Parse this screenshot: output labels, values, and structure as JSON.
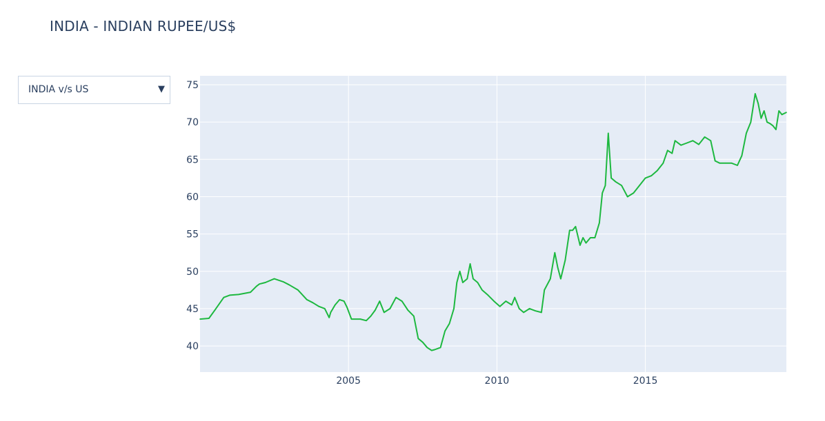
{
  "title": "INDIA - INDIAN RUPEE/US$",
  "dropdown": {
    "selected": "INDIA v/s US",
    "icon": "triangle-down-icon"
  },
  "colors": {
    "line": "#1db83f",
    "plot_bg": "#e5ecf6",
    "grid": "#ffffff",
    "text": "#2a3f5f"
  },
  "chart_data": {
    "type": "line",
    "title": "INDIA - INDIAN RUPEE/US$",
    "xlabel": "",
    "ylabel": "",
    "xlim": [
      2000.0,
      2019.75
    ],
    "ylim": [
      36.5,
      76.2
    ],
    "x_ticks": [
      2005,
      2010,
      2015
    ],
    "x_tick_labels": [
      "2005",
      "2010",
      "2015"
    ],
    "y_ticks": [
      40,
      45,
      50,
      55,
      60,
      65,
      70,
      75
    ],
    "y_tick_labels": [
      "40",
      "45",
      "50",
      "55",
      "60",
      "65",
      "70",
      "75"
    ],
    "grid": true,
    "series": [
      {
        "x": [
          2000.0,
          2000.3,
          2000.5,
          2000.8,
          2001.0,
          2001.3,
          2001.7,
          2001.9,
          2002.0,
          2002.2,
          2002.5,
          2002.8,
          2003.0,
          2003.3,
          2003.6,
          2003.8,
          2004.0,
          2004.2,
          2004.35,
          2004.4,
          2004.55,
          2004.7,
          2004.85,
          2004.95,
          2005.1,
          2005.4,
          2005.6,
          2005.75,
          2005.9,
          2006.05,
          2006.2,
          2006.4,
          2006.6,
          2006.8,
          2007.0,
          2007.2,
          2007.35,
          2007.5,
          2007.65,
          2007.8,
          2007.9,
          2008.1,
          2008.25,
          2008.4,
          2008.55,
          2008.65,
          2008.75,
          2008.85,
          2009.0,
          2009.1,
          2009.2,
          2009.35,
          2009.5,
          2009.7,
          2009.9,
          2010.1,
          2010.3,
          2010.5,
          2010.6,
          2010.75,
          2010.9,
          2011.1,
          2011.3,
          2011.5,
          2011.6,
          2011.8,
          2011.95,
          2012.05,
          2012.15,
          2012.3,
          2012.45,
          2012.55,
          2012.65,
          2012.8,
          2012.9,
          2013.0,
          2013.15,
          2013.3,
          2013.45,
          2013.55,
          2013.65,
          2013.75,
          2013.85,
          2014.0,
          2014.2,
          2014.4,
          2014.6,
          2014.8,
          2015.0,
          2015.2,
          2015.4,
          2015.6,
          2015.75,
          2015.9,
          2016.0,
          2016.2,
          2016.4,
          2016.6,
          2016.8,
          2017.0,
          2017.2,
          2017.35,
          2017.5,
          2017.7,
          2017.9,
          2018.1,
          2018.25,
          2018.4,
          2018.55,
          2018.7,
          2018.8,
          2018.9,
          2019.0,
          2019.1,
          2019.2,
          2019.3,
          2019.4,
          2019.5,
          2019.6,
          2019.75
        ],
        "values": [
          43.6,
          43.7,
          44.8,
          46.5,
          46.8,
          46.9,
          47.2,
          48.0,
          48.3,
          48.5,
          49.0,
          48.6,
          48.2,
          47.5,
          46.2,
          45.8,
          45.3,
          45.0,
          43.8,
          44.5,
          45.5,
          46.2,
          46.0,
          45.2,
          43.6,
          43.6,
          43.4,
          44.0,
          44.8,
          46.0,
          44.5,
          45.0,
          46.5,
          46.0,
          44.8,
          44.0,
          41.0,
          40.5,
          39.8,
          39.4,
          39.5,
          39.8,
          42.0,
          43.0,
          45.0,
          48.5,
          50.0,
          48.5,
          49.0,
          51.0,
          49.0,
          48.5,
          47.5,
          46.8,
          46.0,
          45.3,
          46.0,
          45.5,
          46.5,
          45.0,
          44.5,
          45.0,
          44.7,
          44.5,
          47.5,
          49.0,
          52.5,
          50.5,
          49.0,
          51.5,
          55.5,
          55.5,
          56.0,
          53.5,
          54.5,
          53.8,
          54.5,
          54.5,
          56.5,
          60.5,
          61.5,
          68.5,
          62.5,
          62.0,
          61.5,
          60.0,
          60.5,
          61.5,
          62.5,
          62.8,
          63.5,
          64.5,
          66.2,
          65.8,
          67.5,
          66.9,
          67.2,
          67.5,
          67.0,
          68.0,
          67.5,
          64.8,
          64.5,
          64.5,
          64.5,
          64.2,
          65.5,
          68.5,
          70.0,
          73.8,
          72.5,
          70.5,
          71.5,
          70.0,
          69.8,
          69.5,
          69.0,
          71.5,
          71.0,
          71.3
        ]
      }
    ]
  }
}
